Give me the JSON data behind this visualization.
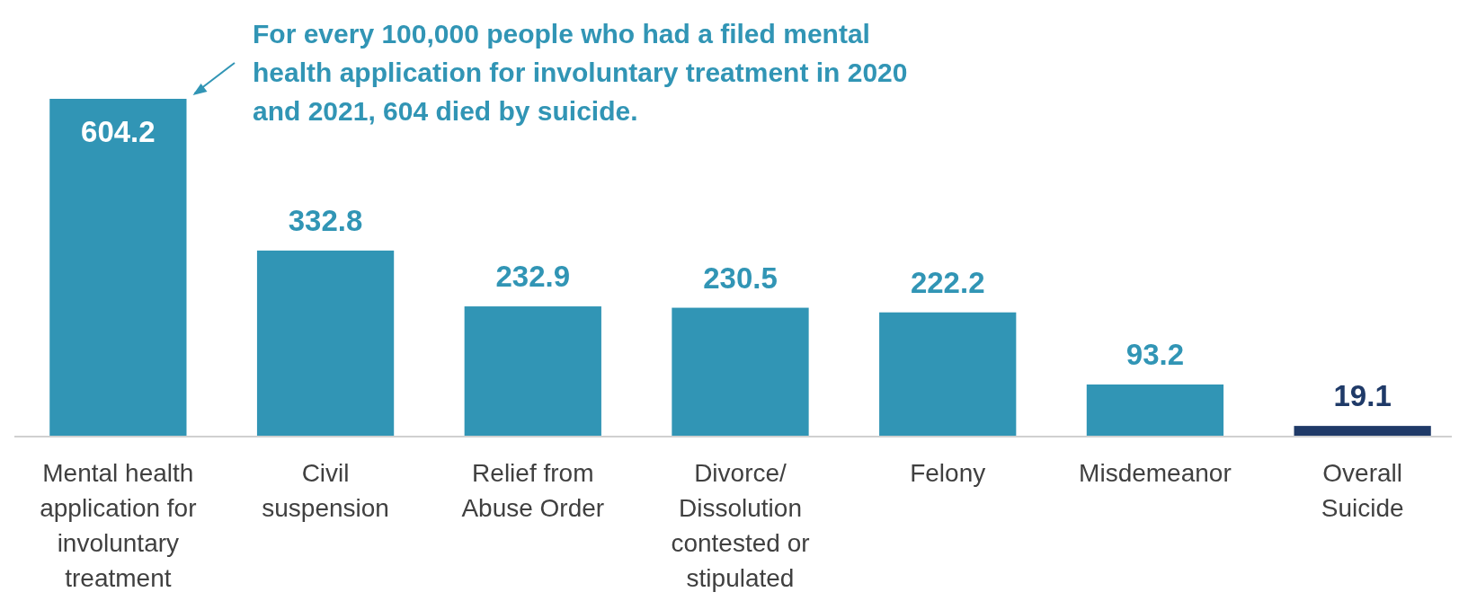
{
  "chart_data": {
    "type": "bar",
    "categories": [
      "Mental health application for involuntary treatment",
      "Civil suspension",
      "Relief from Abuse Order",
      "Divorce/ Dissolution contested or stipulated",
      "Felony",
      "Misdemeanor",
      "Overall Suicide"
    ],
    "values": [
      604.2,
      332.8,
      232.9,
      230.5,
      222.2,
      93.2,
      19.1
    ],
    "colors": [
      "#3195b5",
      "#3195b5",
      "#3195b5",
      "#3195b5",
      "#3195b5",
      "#3195b5",
      "#1f3a68"
    ],
    "data_labels": true,
    "annotations": [
      "For every 100,000 people who had a filed mental health application for involuntary treatment in 2020 and 2021, 604 died by suicide."
    ]
  }
}
